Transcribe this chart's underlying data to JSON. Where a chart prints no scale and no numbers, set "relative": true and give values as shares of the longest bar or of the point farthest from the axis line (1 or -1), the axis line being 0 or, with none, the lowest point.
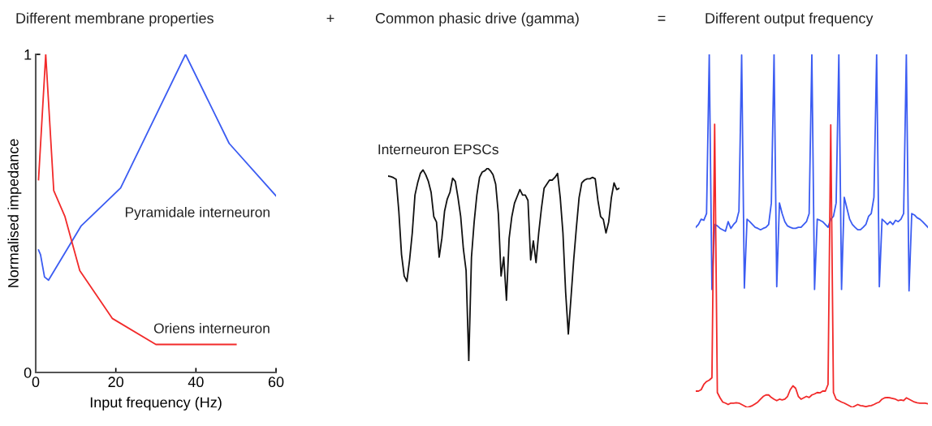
{
  "chart_data": [
    {
      "type": "line",
      "title": "Different membrane properties",
      "xlabel": "Input frequency (Hz)",
      "ylabel": "Normalised impedance",
      "xlim": [
        0,
        60
      ],
      "xticks": [
        0,
        20,
        40,
        60
      ],
      "ylim": [
        0,
        1
      ],
      "yticks": [
        0,
        1
      ],
      "grid": false,
      "legend": false,
      "series": [
        {
          "name": "Pyramidale interneuron",
          "color": "#3b5cf2",
          "x": [
            0.7,
            1.2,
            2.2,
            3.2,
            11.3,
            21.2,
            37.4,
            48.3,
            60
          ],
          "values": [
            0.385,
            0.37,
            0.3,
            0.29,
            0.46,
            0.58,
            1.0,
            0.72,
            0.555
          ]
        },
        {
          "name": "Oriens interneuron",
          "color": "#f22a2a",
          "x": [
            0.7,
            2.5,
            4.5,
            7.3,
            11.0,
            19.1,
            30.0,
            50.0
          ],
          "values": [
            0.606,
            1.0,
            0.572,
            0.49,
            0.32,
            0.17,
            0.088,
            0.088
          ]
        }
      ]
    },
    {
      "type": "line",
      "title": "Common phasic drive (gamma)",
      "annotations": [
        "+"
      ],
      "relative": true,
      "categories": [
        null,
        null,
        null,
        null,
        null,
        null,
        null,
        null,
        null,
        null,
        null,
        null,
        null,
        null,
        null,
        null,
        null,
        null,
        null,
        null,
        null,
        null,
        null,
        null,
        null,
        null,
        null,
        null,
        null,
        null,
        null,
        null,
        null,
        null,
        null,
        null,
        null,
        null,
        null,
        null,
        null,
        null,
        null,
        null,
        null,
        null,
        null,
        null,
        null,
        null,
        null,
        null,
        null,
        null,
        null,
        null,
        null,
        null,
        null,
        null,
        null,
        null,
        null,
        null,
        null,
        null,
        null,
        null,
        null,
        null,
        null,
        null,
        null,
        null,
        null,
        null,
        null,
        null,
        null,
        null,
        null,
        null,
        null,
        null,
        null,
        null,
        null
      ],
      "series": [
        {
          "name": "Interneuron EPSCs",
          "color": "#111111",
          "values": [
            0.958,
            0.955,
            0.95,
            0.941,
            0.776,
            0.552,
            0.441,
            0.413,
            0.524,
            0.664,
            0.86,
            0.923,
            0.972,
            0.99,
            0.965,
            0.93,
            0.874,
            0.748,
            0.72,
            0.538,
            0.636,
            0.776,
            0.839,
            0.874,
            0.947,
            0.93,
            0.846,
            0.748,
            0.58,
            0.469,
            0,
            0.538,
            0.72,
            0.86,
            0.951,
            0.979,
            0.986,
            1.0,
            0.986,
            0.965,
            0.916,
            0.762,
            0.441,
            0.538,
            0.315,
            0.636,
            0.748,
            0.818,
            0.853,
            0.888,
            0.86,
            0.86,
            0.832,
            0.524,
            0.622,
            0.51,
            0.664,
            0.79,
            0.895,
            0.916,
            0.937,
            0.937,
            0.951,
            0.972,
            0.846,
            0.664,
            0.357,
            0.14,
            0.329,
            0.524,
            0.692,
            0.846,
            0.923,
            0.937,
            0.944,
            0.944,
            0.951,
            0.944,
            0.832,
            0.748,
            0.734,
            0.664,
            0.72,
            0.846,
            0.923,
            0.888,
            0.895
          ]
        }
      ]
    },
    {
      "type": "line",
      "title": "Different output frequency",
      "annotations": [
        "="
      ],
      "relative": true,
      "categories": [
        null,
        null,
        null,
        null,
        null,
        null,
        null,
        null,
        null,
        null,
        null,
        null,
        null,
        null,
        null,
        null,
        null,
        null,
        null,
        null,
        null,
        null,
        null,
        null,
        null,
        null,
        null,
        null,
        null,
        null,
        null,
        null,
        null,
        null,
        null,
        null,
        null,
        null,
        null,
        null,
        null,
        null,
        null,
        null,
        null,
        null,
        null,
        null,
        null,
        null,
        null,
        null,
        null,
        null,
        null,
        null,
        null,
        null,
        null,
        null,
        null,
        null,
        null,
        null,
        null,
        null,
        null,
        null,
        null,
        null,
        null,
        null,
        null,
        null,
        null,
        null,
        null,
        null,
        null,
        null,
        null,
        null,
        null,
        null,
        null,
        null,
        null
      ],
      "series": [
        {
          "color": "#3b5cf2",
          "values": [
            0.51,
            0.518,
            0.533,
            0.53,
            0.549,
            1.0,
            0.334,
            0.518,
            0.514,
            0.507,
            0.503,
            0.499,
            0.526,
            0.507,
            0.518,
            0.526,
            0.556,
            0.998,
            0.338,
            0.533,
            0.526,
            0.518,
            0.51,
            0.507,
            0.503,
            0.507,
            0.51,
            0.518,
            0.579,
            1.0,
            0.342,
            0.579,
            0.549,
            0.526,
            0.514,
            0.51,
            0.507,
            0.507,
            0.51,
            0.51,
            0.518,
            0.526,
            0.549,
            1.0,
            0.334,
            0.533,
            0.53,
            0.526,
            0.518,
            0.51,
            0.533,
            0.541,
            0.579,
            1.0,
            0.334,
            0.595,
            0.564,
            0.533,
            0.518,
            0.51,
            0.503,
            0.503,
            0.51,
            0.518,
            0.541,
            0.549,
            0.595,
            1.0,
            0.342,
            0.533,
            0.526,
            0.518,
            0.526,
            0.518,
            0.53,
            0.526,
            0.533,
            0.549,
            1.0,
            0.33,
            0.549,
            0.545,
            0.537,
            0.533,
            0.526,
            0.518,
            0.51
          ]
        },
        {
          "color": "#f22a2a",
          "values": [
            0.046,
            0.046,
            0.05,
            0.065,
            0.073,
            0.077,
            0.084,
            0.802,
            0.042,
            0.027,
            0.015,
            0.012,
            0.008,
            0.012,
            0.012,
            0.013,
            0.012,
            0.008,
            0.004,
            0,
            0.002,
            0.005,
            0.01,
            0.015,
            0.023,
            0.031,
            0.035,
            0.035,
            0.028,
            0.023,
            0.019,
            0.023,
            0.021,
            0.023,
            0.031,
            0.05,
            0.061,
            0.054,
            0.031,
            0.023,
            0.027,
            0.031,
            0.028,
            0.035,
            0.038,
            0.042,
            0.041,
            0.046,
            0.046,
            0.065,
            0.8,
            0.042,
            0.023,
            0.019,
            0.015,
            0.012,
            0.008,
            0.004,
            0,
            0.004,
            0.008,
            0.005,
            0.004,
            0.002,
            0.004,
            0.005,
            0.008,
            0.012,
            0.015,
            0.023,
            0.027,
            0.028,
            0.027,
            0.025,
            0.023,
            0.019,
            0.021,
            0.019,
            0.027,
            0.023,
            0.019,
            0.015,
            0.013,
            0.012,
            0.012,
            0.012,
            0.01
          ]
        }
      ]
    }
  ]
}
